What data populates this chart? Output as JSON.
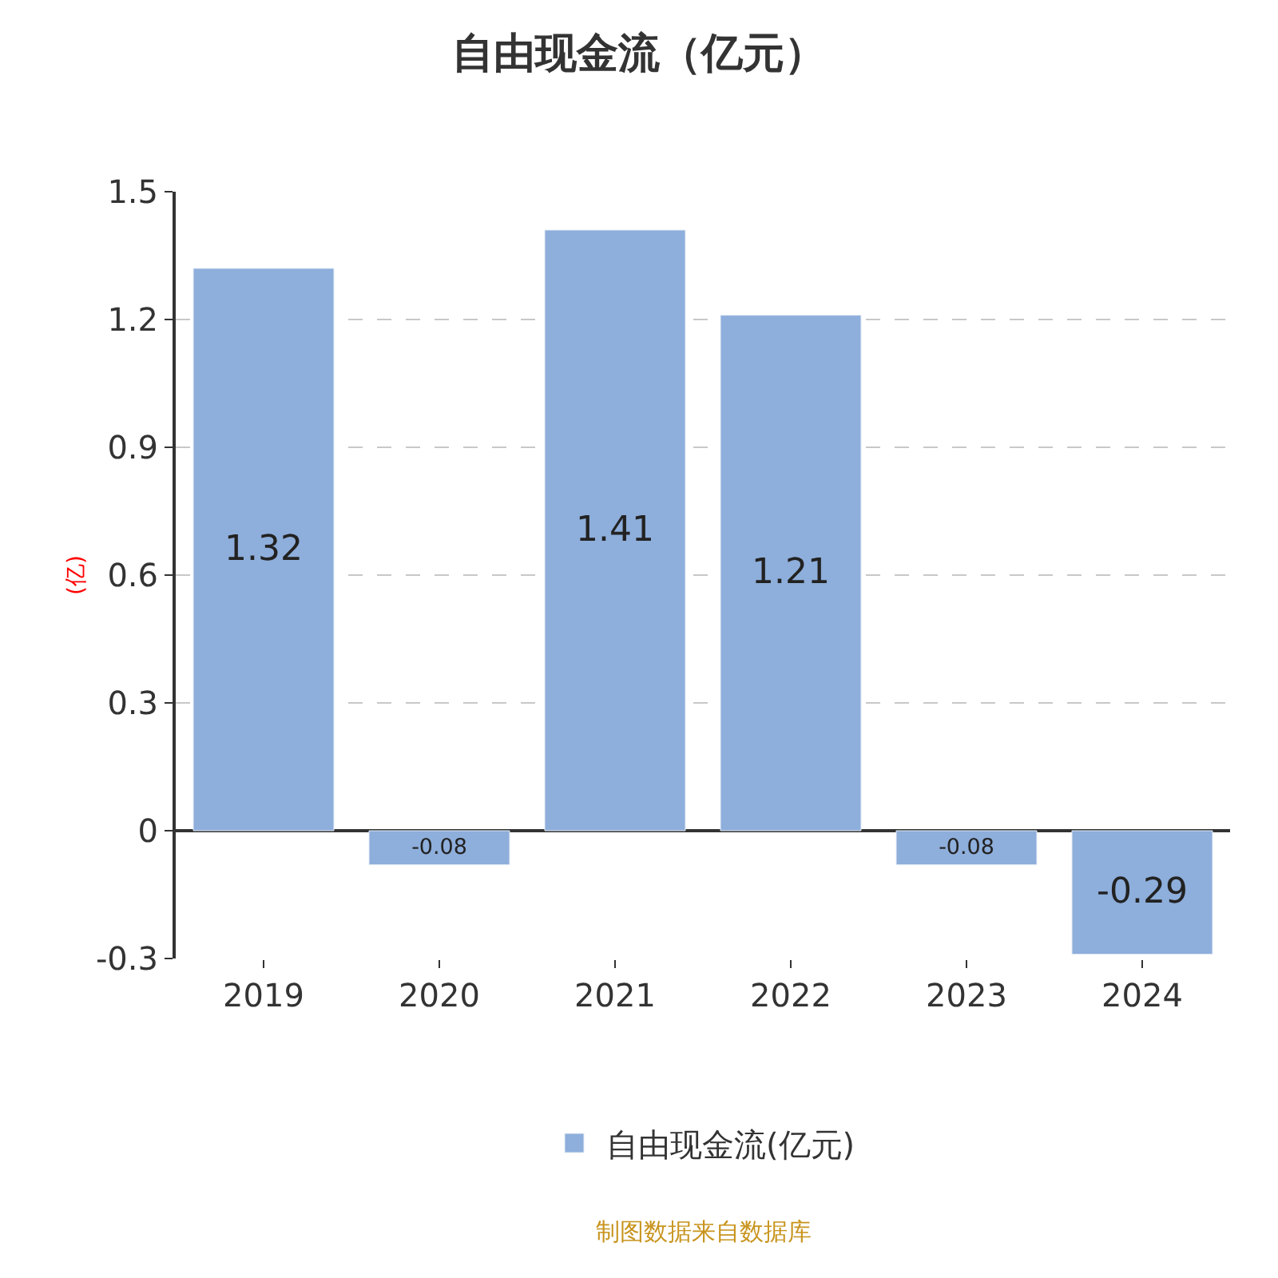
{
  "chart_data": {
    "type": "bar",
    "title": "自由现金流（亿元）",
    "ylabel": "(亿)",
    "categories": [
      "2019",
      "2020",
      "2021",
      "2022",
      "2023",
      "2024"
    ],
    "series": [
      {
        "name": "自由现金流(亿元)",
        "color": "#8eaedb",
        "values": [
          1.32,
          -0.08,
          1.41,
          1.21,
          -0.08,
          -0.29
        ]
      }
    ],
    "ylim": [
      -0.3,
      1.5
    ],
    "yticks": [
      -0.3,
      0,
      0.3,
      0.6,
      0.9,
      1.2,
      1.5
    ],
    "grid": "y",
    "legend": "bottom",
    "data_labels": true,
    "annotations": [
      "制图数据来自数据库"
    ]
  }
}
